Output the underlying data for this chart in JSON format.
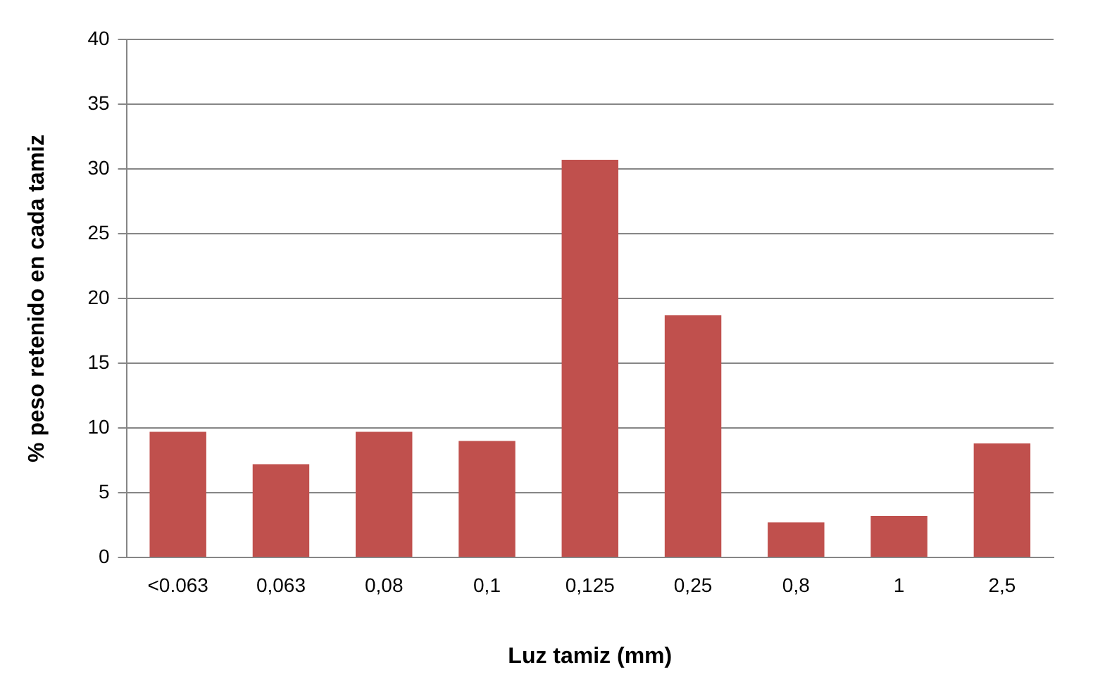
{
  "chart_data": {
    "type": "bar",
    "xlabel": "Luz tamiz (mm)",
    "ylabel": "% peso retenido en cada tamiz",
    "categories": [
      "<0.063",
      "0,063",
      "0,08",
      "0,1",
      "0,125",
      "0,25",
      "0,8",
      "1",
      "2,5"
    ],
    "values": [
      9.7,
      7.2,
      9.7,
      9.0,
      30.7,
      18.7,
      2.7,
      3.2,
      8.8
    ],
    "color": "#c0504d",
    "ylim": [
      0,
      40
    ],
    "yticks": [
      0,
      5,
      10,
      15,
      20,
      25,
      30,
      35,
      40
    ],
    "grid": "y",
    "legend": false
  }
}
